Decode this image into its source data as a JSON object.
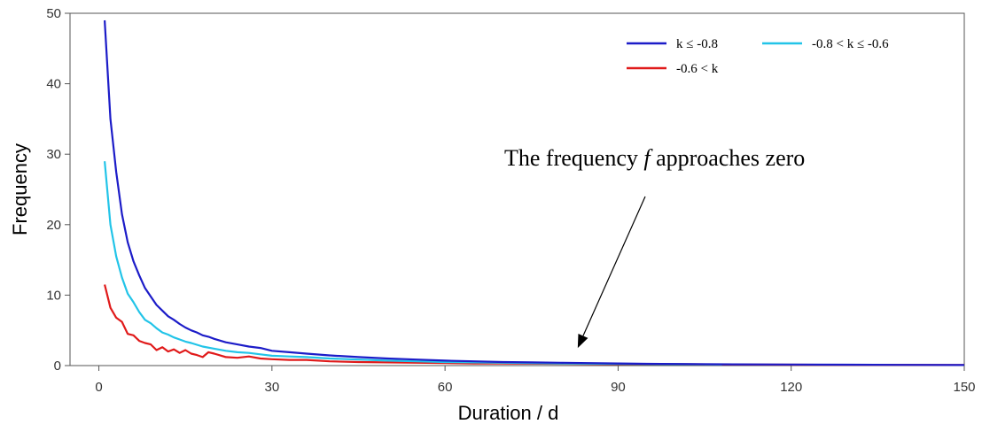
{
  "chart_data": {
    "type": "line",
    "title": "",
    "xlabel": "Duration / d",
    "ylabel": "Frequency",
    "xlim": [
      -5,
      150
    ],
    "ylim": [
      0,
      50
    ],
    "xticks": [
      0,
      30,
      60,
      90,
      120,
      150
    ],
    "yticks": [
      0,
      10,
      20,
      30,
      40,
      50
    ],
    "grid": false,
    "legend_position": "top-right",
    "series": [
      {
        "name": "k ≤ -0.8",
        "color": "#1c1cc8",
        "x": [
          1,
          2,
          3,
          4,
          5,
          6,
          7,
          8,
          9,
          10,
          11,
          12,
          13,
          14,
          15,
          16,
          17,
          18,
          19,
          20,
          22,
          24,
          26,
          28,
          30,
          33,
          36,
          40,
          45,
          50,
          55,
          60,
          65,
          70,
          75,
          80,
          85,
          90,
          95,
          100,
          110,
          120,
          130,
          140,
          150
        ],
        "y": [
          49,
          35,
          27.5,
          21.5,
          17.5,
          14.8,
          12.8,
          11,
          9.8,
          8.6,
          7.8,
          7,
          6.5,
          5.9,
          5.4,
          5,
          4.7,
          4.3,
          4.1,
          3.8,
          3.3,
          3.0,
          2.7,
          2.5,
          2.1,
          1.9,
          1.7,
          1.45,
          1.2,
          1.0,
          0.85,
          0.7,
          0.6,
          0.5,
          0.45,
          0.4,
          0.35,
          0.3,
          0.25,
          0.22,
          0.18,
          0.15,
          0.12,
          0.1,
          0.08
        ]
      },
      {
        "name": "-0.8 < k  ≤  -0.6",
        "color": "#22c4e8",
        "x": [
          1,
          2,
          3,
          4,
          5,
          6,
          7,
          8,
          9,
          10,
          11,
          12,
          13,
          14,
          15,
          16,
          18,
          20,
          22,
          24,
          26,
          28,
          30,
          33,
          36,
          40,
          45,
          50,
          55,
          60,
          65,
          70,
          80,
          90,
          100,
          108
        ],
        "y": [
          29,
          20,
          15.5,
          12.5,
          10.2,
          9,
          7.6,
          6.5,
          6,
          5.3,
          4.7,
          4.4,
          4,
          3.7,
          3.4,
          3.2,
          2.7,
          2.4,
          2.1,
          1.9,
          1.8,
          1.6,
          1.4,
          1.3,
          1.2,
          1.0,
          0.85,
          0.7,
          0.6,
          0.5,
          0.45,
          0.4,
          0.3,
          0.25,
          0.2,
          0.15
        ]
      },
      {
        "name": "-0.6 < k",
        "color": "#e01a1a",
        "x": [
          1,
          2,
          3,
          4,
          5,
          6,
          7,
          8,
          9,
          10,
          11,
          12,
          13,
          14,
          15,
          16,
          17,
          18,
          19,
          20,
          22,
          24,
          26,
          28,
          30,
          33,
          36,
          40,
          45,
          50,
          55,
          60,
          65,
          70,
          80,
          90,
          100,
          110,
          120,
          130,
          140,
          150
        ],
        "y": [
          11.5,
          8.2,
          6.8,
          6.2,
          4.5,
          4.3,
          3.5,
          3.2,
          3.0,
          2.2,
          2.6,
          2.0,
          2.3,
          1.8,
          2.2,
          1.7,
          1.5,
          1.2,
          1.9,
          1.7,
          1.2,
          1.1,
          1.3,
          1.0,
          0.9,
          0.8,
          0.8,
          0.6,
          0.5,
          0.45,
          0.4,
          0.35,
          0.3,
          0.3,
          0.25,
          0.2,
          0.2,
          0.15,
          0.12,
          0.1,
          0.1,
          0.08
        ]
      }
    ],
    "annotations": [
      {
        "text_before": "The frequency ",
        "text_italic": "f",
        "text_after": " approaches zero",
        "arrow_to": [
          83,
          2.5
        ]
      }
    ]
  }
}
